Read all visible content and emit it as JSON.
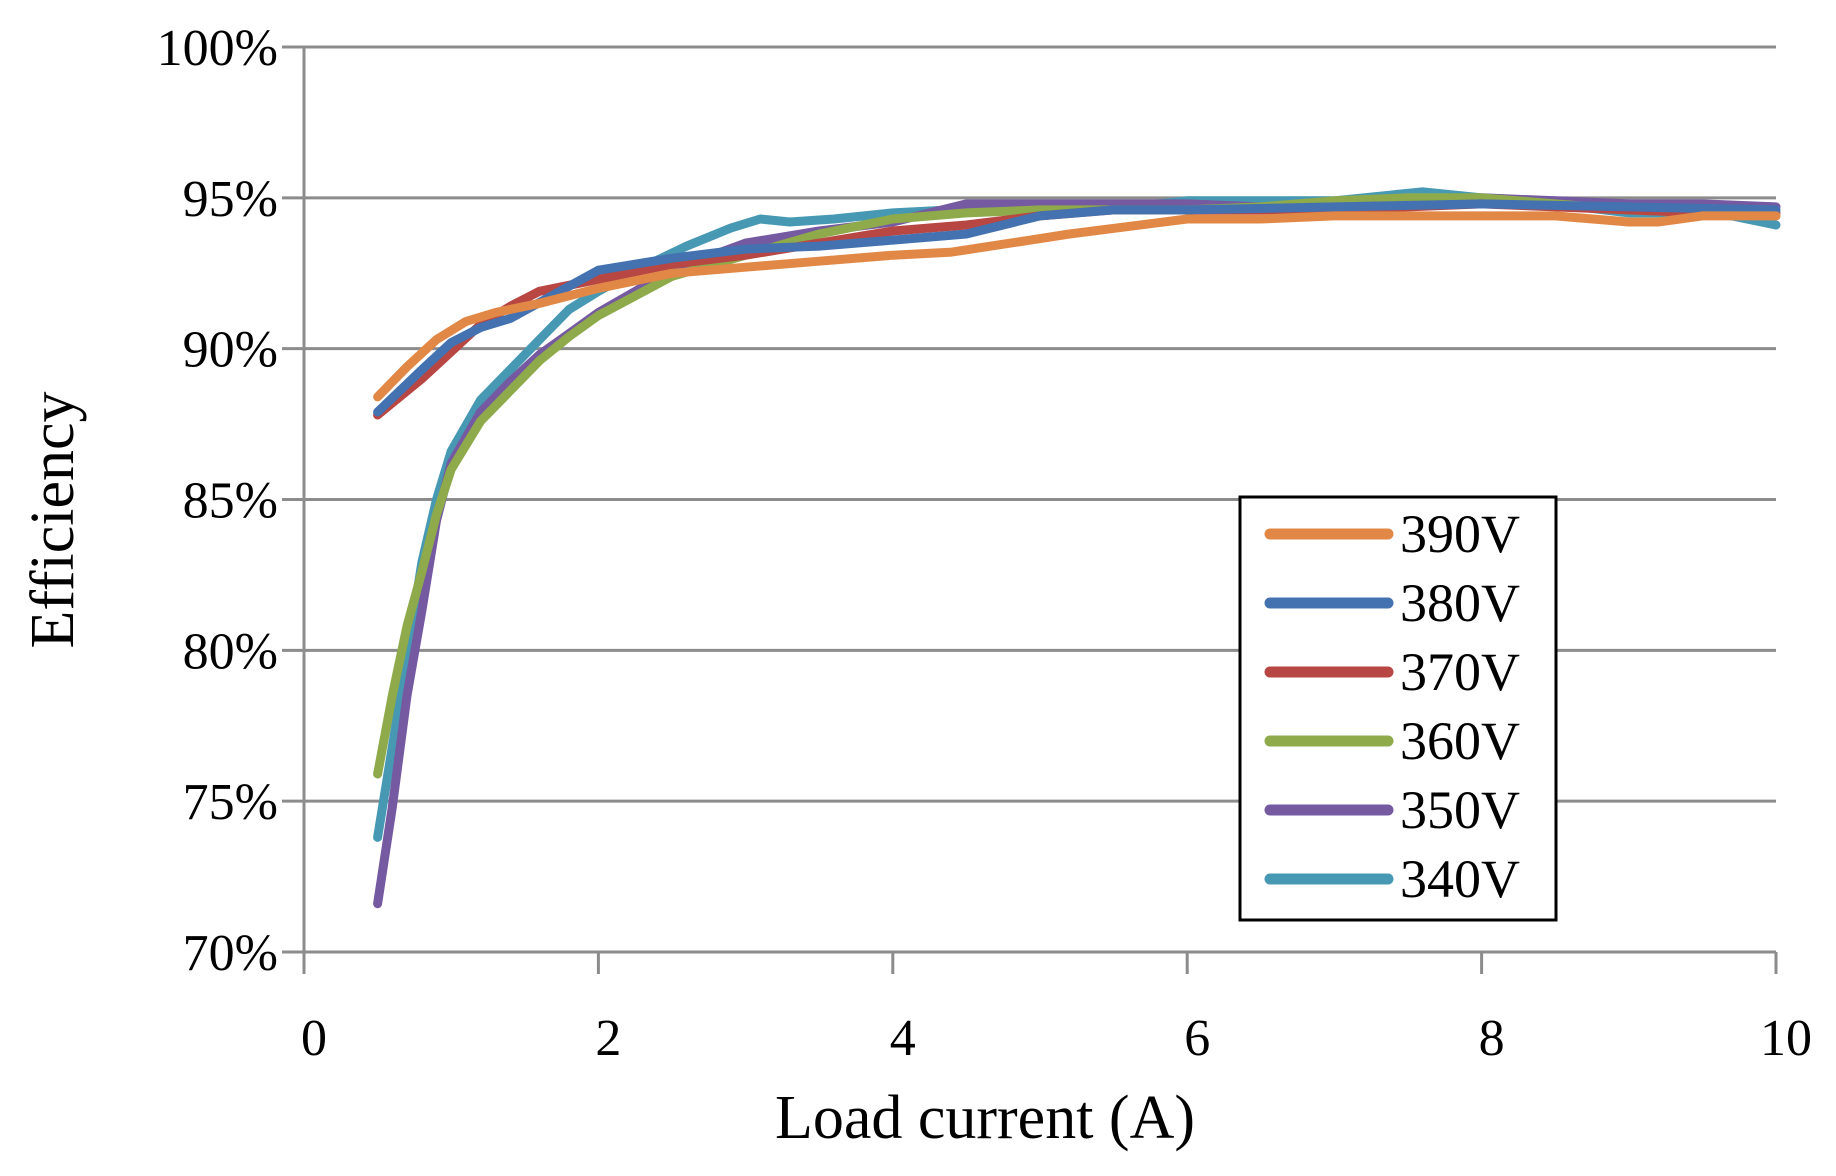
{
  "chart_data": {
    "type": "line",
    "title": "",
    "xlabel": "Load current (A)",
    "ylabel": "Efficiency",
    "xlim": [
      0,
      10
    ],
    "ylim": [
      70,
      100
    ],
    "xticks": [
      0,
      2,
      4,
      6,
      8,
      10
    ],
    "xtick_labels": [
      "0",
      "2",
      "4",
      "6",
      "8",
      "10"
    ],
    "yticks": [
      70,
      75,
      80,
      85,
      90,
      95,
      100
    ],
    "ytick_labels": [
      "70%",
      "75%",
      "80%",
      "85%",
      "90%",
      "95%",
      "100%"
    ],
    "grid": true,
    "legend_position": "right-bottom",
    "series": [
      {
        "name": "390V",
        "color": "#E28846",
        "x": [
          0.5,
          0.7,
          0.9,
          1.1,
          1.3,
          1.6,
          2.0,
          2.5,
          3.0,
          3.5,
          4.0,
          4.4,
          4.8,
          5.2,
          6.0,
          6.5,
          7.0,
          7.5,
          8.0,
          8.5,
          9.0,
          9.2,
          9.5,
          10.0
        ],
        "y": [
          88.4,
          89.4,
          90.3,
          90.9,
          91.2,
          91.5,
          92.0,
          92.5,
          92.7,
          92.9,
          93.1,
          93.2,
          93.5,
          93.8,
          94.3,
          94.3,
          94.4,
          94.4,
          94.4,
          94.4,
          94.2,
          94.2,
          94.4,
          94.4
        ]
      },
      {
        "name": "380V",
        "color": "#4472B0",
        "x": [
          0.5,
          0.8,
          1.0,
          1.2,
          1.4,
          1.7,
          2.0,
          2.5,
          3.0,
          3.5,
          4.0,
          4.5,
          5.0,
          5.5,
          6.0,
          7.0,
          8.0,
          9.0,
          10.0
        ],
        "y": [
          87.9,
          89.3,
          90.2,
          90.7,
          91.0,
          91.8,
          92.6,
          93.0,
          93.3,
          93.4,
          93.6,
          93.8,
          94.4,
          94.6,
          94.6,
          94.7,
          94.8,
          94.7,
          94.6
        ]
      },
      {
        "name": "370V",
        "color": "#B84642",
        "x": [
          0.5,
          0.8,
          1.0,
          1.2,
          1.4,
          1.6,
          2.0,
          2.5,
          3.0,
          3.5,
          4.0,
          4.5,
          5.0,
          5.5,
          6.0,
          6.5,
          7.0,
          7.5,
          8.0,
          8.5,
          9.0,
          9.5,
          10.0
        ],
        "y": [
          87.8,
          89.0,
          89.9,
          90.8,
          91.4,
          91.9,
          92.3,
          92.8,
          93.1,
          93.5,
          93.9,
          94.1,
          94.4,
          94.6,
          94.6,
          94.6,
          94.6,
          94.7,
          94.8,
          94.7,
          94.6,
          94.5,
          94.5
        ]
      },
      {
        "name": "360V",
        "color": "#8EAA4B",
        "x": [
          0.5,
          0.6,
          0.7,
          0.8,
          0.9,
          1.0,
          1.2,
          1.4,
          1.6,
          1.8,
          2.0,
          2.5,
          3.0,
          3.5,
          4.0,
          4.5,
          5.0,
          5.5,
          6.0,
          6.5,
          7.0,
          7.5,
          8.0,
          8.5,
          9.0,
          9.5,
          10.0
        ],
        "y": [
          75.9,
          78.5,
          80.8,
          82.6,
          84.5,
          86.0,
          87.6,
          88.6,
          89.6,
          90.4,
          91.1,
          92.4,
          93.1,
          93.8,
          94.3,
          94.5,
          94.6,
          94.6,
          94.6,
          94.7,
          94.9,
          95.0,
          95.0,
          94.8,
          94.6,
          94.5,
          94.4
        ]
      },
      {
        "name": "350V",
        "color": "#7559A1",
        "x": [
          0.5,
          0.6,
          0.7,
          0.8,
          0.9,
          1.0,
          1.2,
          1.4,
          1.6,
          1.8,
          2.0,
          2.5,
          3.0,
          3.5,
          4.0,
          4.5,
          5.0,
          5.5,
          6.0,
          6.5,
          7.0,
          7.5,
          8.0,
          8.5,
          9.0,
          9.5,
          10.0
        ],
        "y": [
          71.6,
          74.8,
          78.5,
          81.3,
          84.3,
          86.2,
          87.9,
          88.9,
          89.8,
          90.5,
          91.2,
          92.6,
          93.5,
          93.9,
          94.2,
          94.8,
          94.8,
          94.8,
          94.8,
          94.7,
          94.7,
          94.8,
          95.0,
          94.9,
          94.8,
          94.8,
          94.7
        ]
      },
      {
        "name": "340V",
        "color": "#4799B3",
        "x": [
          0.5,
          0.6,
          0.7,
          0.8,
          0.9,
          1.0,
          1.2,
          1.4,
          1.6,
          1.8,
          2.0,
          2.3,
          2.6,
          2.9,
          3.1,
          3.3,
          3.6,
          4.0,
          4.4,
          4.8,
          5.2,
          5.6,
          6.0,
          6.5,
          7.0,
          7.4,
          7.6,
          8.0,
          8.5,
          9.0,
          9.3,
          9.6,
          10.0
        ],
        "y": [
          73.8,
          76.8,
          79.8,
          82.9,
          85.0,
          86.6,
          88.3,
          89.3,
          90.3,
          91.3,
          91.9,
          92.7,
          93.4,
          94.0,
          94.3,
          94.2,
          94.3,
          94.5,
          94.6,
          94.6,
          94.7,
          94.7,
          94.9,
          94.9,
          94.9,
          95.1,
          95.2,
          95.0,
          94.8,
          94.5,
          94.5,
          94.5,
          94.1
        ]
      }
    ]
  }
}
